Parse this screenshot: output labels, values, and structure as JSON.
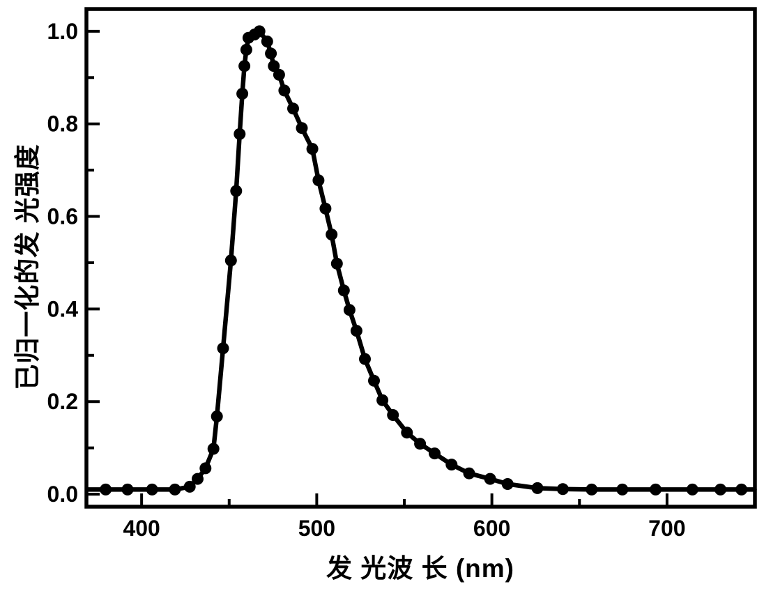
{
  "figure": {
    "background": "#ffffff",
    "axis_color": "#000000",
    "curve_color": "#000000",
    "marker_color": "#000000"
  },
  "chart_data": {
    "type": "line",
    "title": "",
    "xlabel": "发 光波 长 (nm)",
    "ylabel": "已归一化的发 光强度",
    "xlim": [
      368.5,
      750.2
    ],
    "ylim": [
      -0.027,
      1.048
    ],
    "x_ticks": [
      400,
      500,
      600,
      700
    ],
    "x_tick_labels": [
      "400",
      "500",
      "600",
      "700"
    ],
    "x_minor_ticks": [
      450,
      550,
      650
    ],
    "y_ticks": [
      0.0,
      0.2,
      0.4,
      0.6,
      0.8,
      1.0
    ],
    "y_tick_labels": [
      "0.0",
      "0.2",
      "0.4",
      "0.6",
      "0.8",
      "1.0"
    ],
    "y_minor_ticks": [
      0.1,
      0.3,
      0.5,
      0.7,
      0.9
    ],
    "grid": false,
    "legend": "none",
    "marker": "filled-circle",
    "series": [
      {
        "name": "归一化发光强度",
        "line_extension": {
          "start": [
            368.8,
            0.01
          ],
          "end": [
            750.0,
            0.01
          ]
        },
        "points": [
          [
            379.5,
            0.01
          ],
          [
            392,
            0.01
          ],
          [
            406,
            0.01
          ],
          [
            419,
            0.01
          ],
          [
            427.5,
            0.016
          ],
          [
            432,
            0.033
          ],
          [
            436.5,
            0.056
          ],
          [
            441,
            0.098
          ],
          [
            443,
            0.168
          ],
          [
            446.5,
            0.315
          ],
          [
            451,
            0.505
          ],
          [
            454,
            0.655
          ],
          [
            456,
            0.778
          ],
          [
            457.5,
            0.865
          ],
          [
            458.7,
            0.925
          ],
          [
            459.8,
            0.96
          ],
          [
            461,
            0.986
          ],
          [
            464.5,
            0.993
          ],
          [
            467.3,
            1.0
          ],
          [
            471.7,
            0.978
          ],
          [
            473.8,
            0.952
          ],
          [
            475.5,
            0.925
          ],
          [
            478.5,
            0.906
          ],
          [
            481.5,
            0.872
          ],
          [
            486.5,
            0.833
          ],
          [
            491.5,
            0.791
          ],
          [
            497.5,
            0.746
          ],
          [
            501,
            0.678
          ],
          [
            505,
            0.617
          ],
          [
            508.5,
            0.561
          ],
          [
            511.5,
            0.498
          ],
          [
            515.5,
            0.44
          ],
          [
            518.7,
            0.398
          ],
          [
            522.7,
            0.353
          ],
          [
            527.5,
            0.292
          ],
          [
            532.7,
            0.245
          ],
          [
            537.5,
            0.203
          ],
          [
            543.5,
            0.171
          ],
          [
            551.5,
            0.133
          ],
          [
            559,
            0.109
          ],
          [
            567.3,
            0.088
          ],
          [
            577,
            0.064
          ],
          [
            587,
            0.045
          ],
          [
            599,
            0.033
          ],
          [
            609,
            0.022
          ],
          [
            626,
            0.013
          ],
          [
            640.5,
            0.011
          ],
          [
            657,
            0.01
          ],
          [
            674.5,
            0.01
          ],
          [
            693.5,
            0.01
          ],
          [
            714.5,
            0.01
          ],
          [
            730.5,
            0.01
          ],
          [
            742.5,
            0.01
          ]
        ]
      }
    ]
  }
}
